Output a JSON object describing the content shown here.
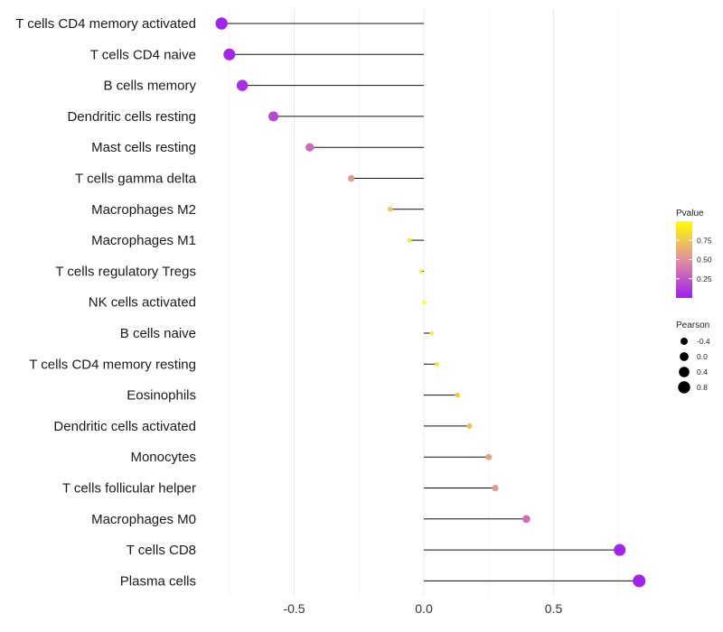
{
  "chart_data": {
    "type": "lollipop",
    "title": "",
    "xlabel": "",
    "ylabel": "",
    "xlim": [
      -0.9,
      0.88
    ],
    "xticks": [
      -0.5,
      0.0,
      0.5
    ],
    "xtick_labels": [
      "-0.5",
      "0.0",
      "0.5"
    ],
    "grid": true,
    "categories": [
      "T cells CD4 memory activated",
      "T cells CD4 naive",
      "B cells memory",
      "Dendritic cells resting",
      "Mast cells resting",
      "T cells gamma delta",
      "Macrophages M2",
      "Macrophages M1",
      "T cells regulatory  Tregs ",
      "NK cells activated",
      "B cells naive",
      "T cells CD4 memory resting",
      "Eosinophils",
      "Dendritic cells activated",
      "Monocytes",
      "T cells follicular helper",
      "Macrophages M0",
      "T cells CD8",
      "Plasma cells"
    ],
    "pearson": [
      -0.78,
      -0.75,
      -0.7,
      -0.58,
      -0.44,
      -0.28,
      -0.13,
      -0.055,
      -0.012,
      0.0,
      0.03,
      0.05,
      0.13,
      0.175,
      0.25,
      0.275,
      0.395,
      0.755,
      0.83
    ],
    "pvalue": [
      0.02,
      0.03,
      0.06,
      0.18,
      0.34,
      0.55,
      0.76,
      0.9,
      0.97,
      1.0,
      0.93,
      0.88,
      0.78,
      0.72,
      0.6,
      0.55,
      0.35,
      0.02,
      0.01
    ],
    "legend_color": {
      "title": "Pvalue",
      "ticks": [
        0.25,
        0.5,
        0.75
      ],
      "tick_labels": [
        "0.25",
        "0.50",
        "0.75"
      ],
      "range": [
        0.0,
        1.0
      ],
      "low_color": "#a020f0",
      "high_color": "#ffff00"
    },
    "legend_size": {
      "title": "Pearson",
      "values": [
        -0.4,
        0.0,
        0.4,
        0.8
      ],
      "labels": [
        "-0.4",
        "0.0",
        "0.4",
        "0.8"
      ]
    },
    "legend_position": "right"
  }
}
